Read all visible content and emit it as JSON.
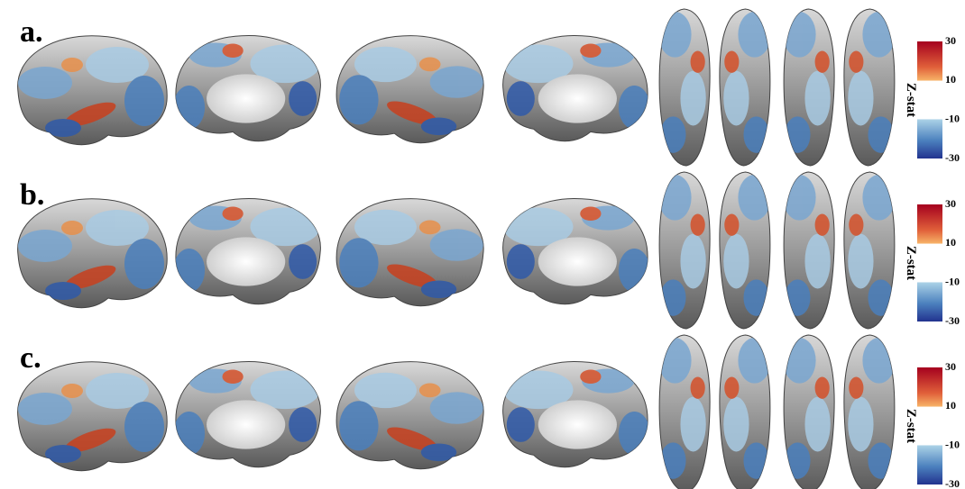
{
  "panels": [
    {
      "label": "a.",
      "colorbar": {
        "title": "Z-stat",
        "ticks": [
          "30",
          "10",
          "-10",
          "-30"
        ]
      }
    },
    {
      "label": "b.",
      "colorbar": {
        "title": "Z-stat",
        "ticks": [
          "30",
          "10",
          "-10",
          "-30"
        ]
      }
    },
    {
      "label": "c.",
      "colorbar": {
        "title": "Z-stat",
        "ticks": [
          "30",
          "10",
          "-10",
          "-30"
        ]
      }
    }
  ]
}
